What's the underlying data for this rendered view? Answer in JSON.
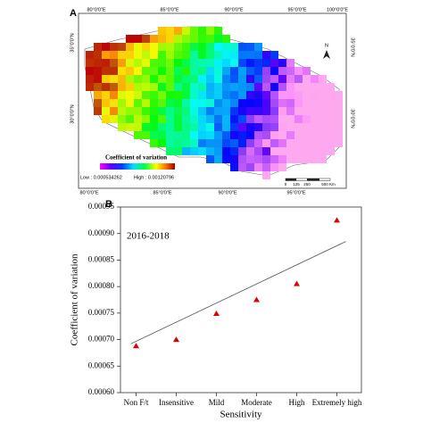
{
  "chart_data": [
    {
      "type": "map",
      "panel": "A",
      "top_lon_labels": [
        "80°0'0\"E",
        "85°0'0\"E",
        "90°0'0\"E",
        "95°0'0\"E",
        "100°0'0\"E"
      ],
      "bottom_lon_labels": [
        "80°0'0\"E",
        "85°0'0\"E",
        "90°0'0\"E",
        "95°0'0\"E"
      ],
      "left_lat_labels": [
        "35°0'0\"N",
        "30°0'0\"N"
      ],
      "right_lat_labels": [
        "35°0'0\"N",
        "30°0'0\"N"
      ],
      "legend_title": "Coefficient of variation",
      "legend_low": "Low : 0.000534262",
      "legend_high": "High : 0.00120796",
      "north": "N",
      "scale_labels": [
        "0",
        "125",
        "250",
        "500 Km"
      ]
    },
    {
      "type": "scatter",
      "panel": "B",
      "annotation": "2016-2018",
      "x_label": "Sensitivity",
      "y_label": "Coefficient of variation",
      "categories": [
        "Non F/t",
        "Insensitive",
        "Mild",
        "Moderate",
        "High",
        "Extremely high"
      ],
      "values": [
        0.000688,
        0.0007,
        0.000749,
        0.000775,
        0.000805,
        0.000925
      ],
      "color": "#e00000",
      "trendline": {
        "start": 0.000692,
        "end": 0.000885,
        "color": "#555555"
      },
      "ylim": [
        0.0006,
        0.00095
      ],
      "yticks": [
        {
          "value": 0.0006,
          "label": "0.00060"
        },
        {
          "value": 0.00065,
          "label": "0.00065"
        },
        {
          "value": 0.0007,
          "label": "0.00070"
        },
        {
          "value": 0.00075,
          "label": "0.00075"
        },
        {
          "value": 0.0008,
          "label": "0.00080"
        },
        {
          "value": 0.00085,
          "label": "0.00085"
        },
        {
          "value": 0.0009,
          "label": "0.00090"
        },
        {
          "value": 0.00095,
          "label": "0.00095"
        }
      ]
    }
  ]
}
